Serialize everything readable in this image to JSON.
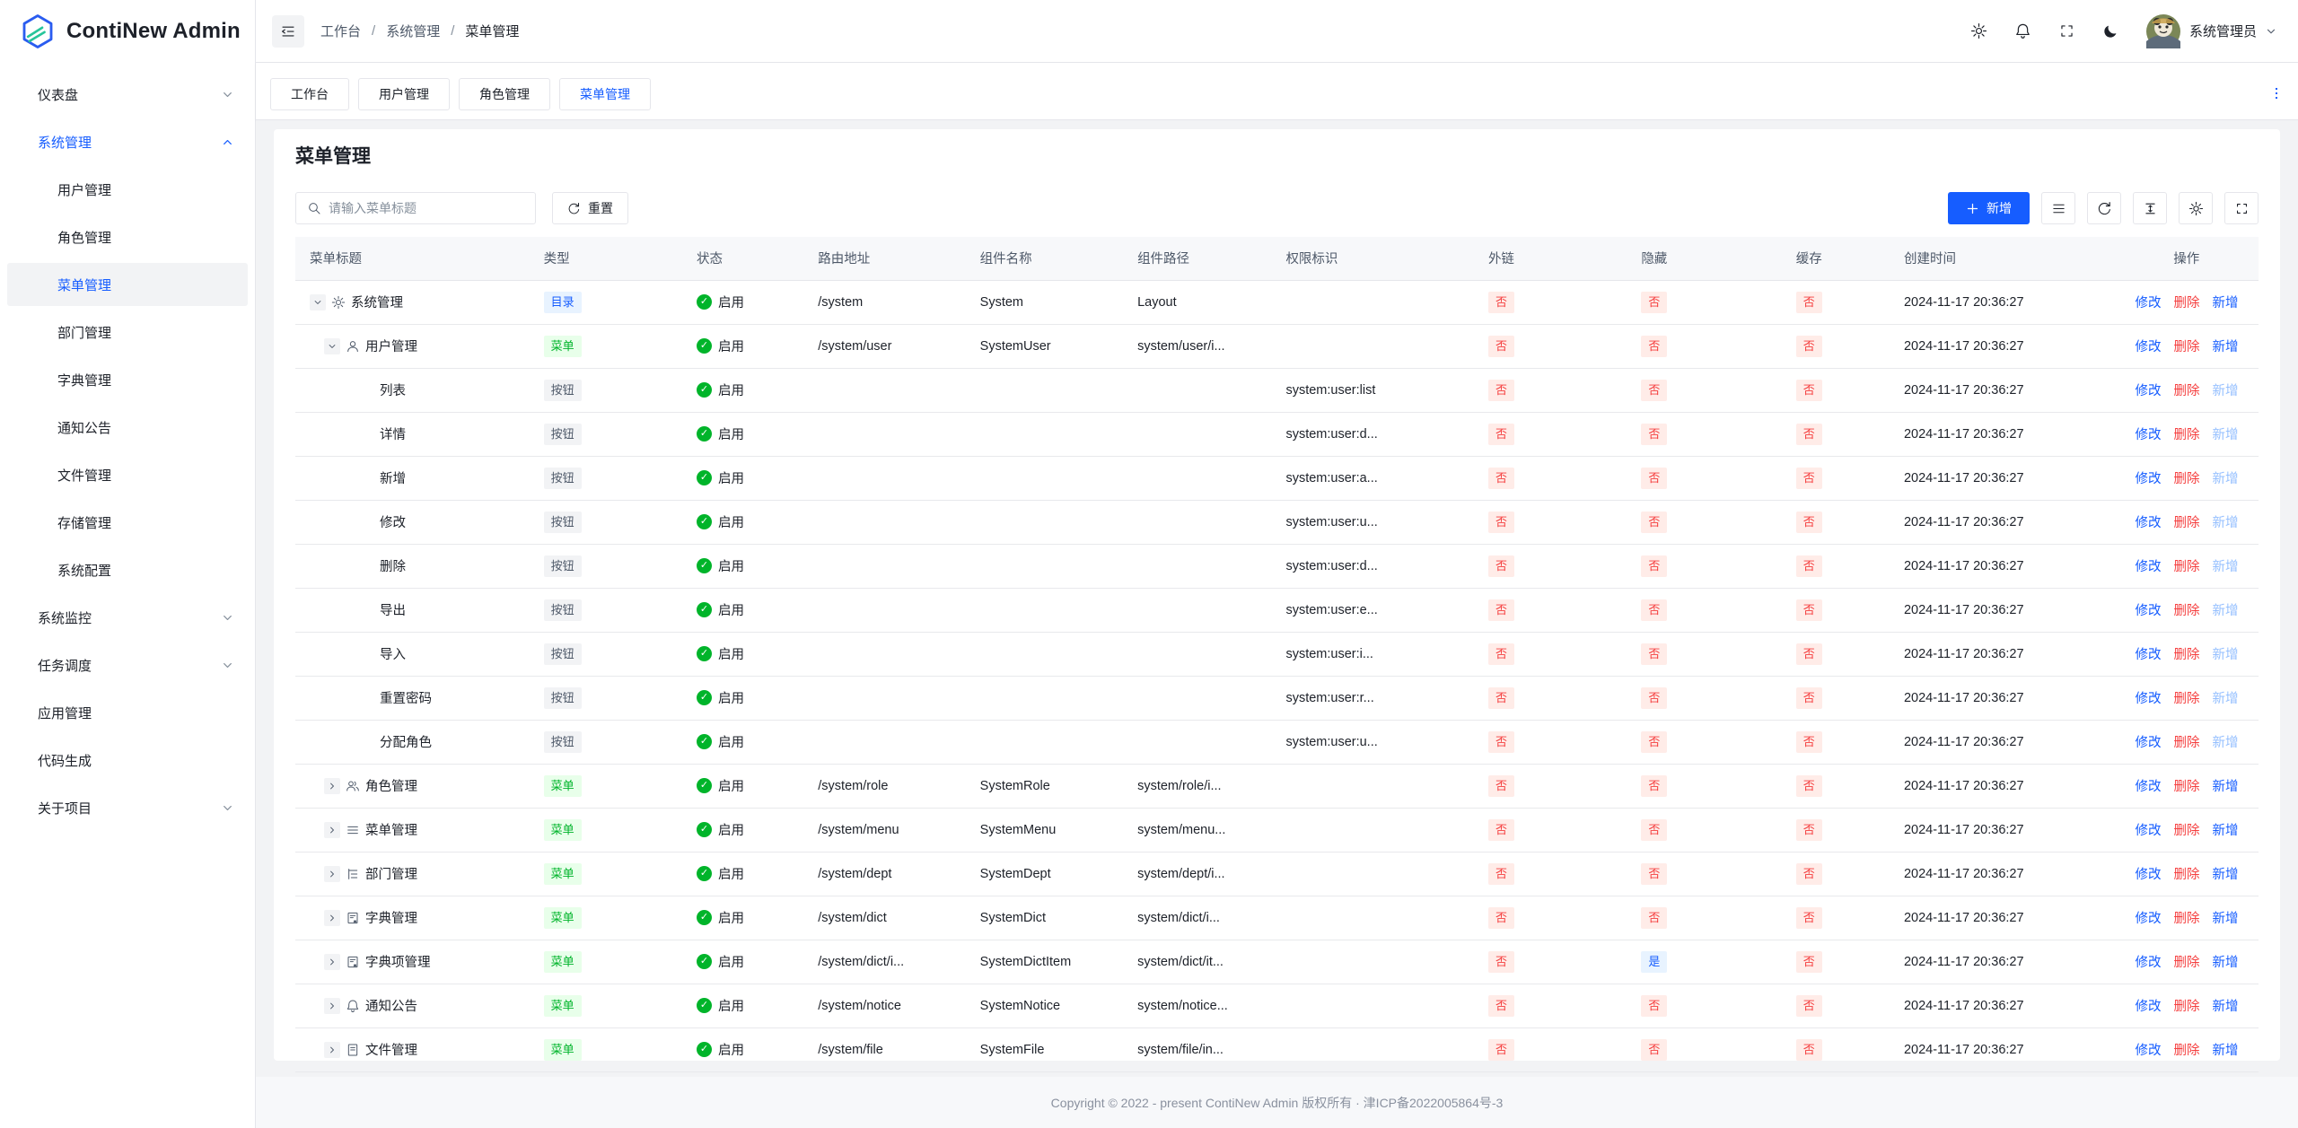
{
  "app": {
    "title": "ContiNew Admin"
  },
  "header": {
    "breadcrumb": [
      "工作台",
      "系统管理",
      "菜单管理"
    ],
    "icons": [
      "gear-icon",
      "bell-icon",
      "fullscreen-icon",
      "moon-icon"
    ],
    "user": {
      "name": "系统管理员"
    }
  },
  "tabs": {
    "items": [
      "工作台",
      "用户管理",
      "角色管理",
      "菜单管理"
    ],
    "active_index": 3
  },
  "sidebar": {
    "items": [
      {
        "icon": "dashboard",
        "label": "仪表盘",
        "chevron": "down"
      },
      {
        "icon": "gear",
        "label": "系统管理",
        "chevron": "up",
        "active_parent": true
      },
      {
        "icon": "user",
        "label": "用户管理",
        "sub": true
      },
      {
        "icon": "users",
        "label": "角色管理",
        "sub": true
      },
      {
        "icon": "menu",
        "label": "菜单管理",
        "sub": true,
        "active": true
      },
      {
        "icon": "tree",
        "label": "部门管理",
        "sub": true
      },
      {
        "icon": "book",
        "label": "字典管理",
        "sub": true
      },
      {
        "icon": "bell",
        "label": "通知公告",
        "sub": true
      },
      {
        "icon": "file",
        "label": "文件管理",
        "sub": true
      },
      {
        "icon": "storage",
        "label": "存储管理",
        "sub": true
      },
      {
        "icon": "sliders",
        "label": "系统配置",
        "sub": true
      },
      {
        "icon": "monitor",
        "label": "系统监控",
        "chevron": "down"
      },
      {
        "icon": "clock",
        "label": "任务调度",
        "chevron": "down"
      },
      {
        "icon": "cube",
        "label": "应用管理"
      },
      {
        "icon": "code",
        "label": "代码生成"
      },
      {
        "icon": "grid",
        "label": "关于项目",
        "chevron": "down"
      }
    ]
  },
  "page": {
    "title": "菜单管理",
    "search_placeholder": "请输入菜单标题",
    "reset_label": "重置",
    "add_label": "新增"
  },
  "table": {
    "columns": [
      "菜单标题",
      "类型",
      "状态",
      "路由地址",
      "组件名称",
      "组件路径",
      "权限标识",
      "外链",
      "隐藏",
      "缓存",
      "创建时间",
      "操作"
    ],
    "action_labels": {
      "edit": "修改",
      "delete": "删除",
      "add": "新增"
    },
    "rows": [
      {
        "level": 0,
        "expand": "down",
        "icon": "gear",
        "title": "系统管理",
        "type": {
          "label": "目录",
          "variant": "dir"
        },
        "status": "启用",
        "route": "/system",
        "component": "System",
        "path": "Layout",
        "perm": "",
        "external": "否",
        "hidden": "否",
        "cache": "否",
        "created": "2024-11-17 20:36:27",
        "add_disabled": false
      },
      {
        "level": 1,
        "expand": "down",
        "icon": "user",
        "title": "用户管理",
        "type": {
          "label": "菜单",
          "variant": "menu"
        },
        "status": "启用",
        "route": "/system/user",
        "component": "SystemUser",
        "path": "system/user/i...",
        "perm": "",
        "external": "否",
        "hidden": "否",
        "cache": "否",
        "created": "2024-11-17 20:36:27",
        "add_disabled": false
      },
      {
        "level": 2,
        "expand": null,
        "icon": null,
        "title": "列表",
        "type": {
          "label": "按钮",
          "variant": "btn"
        },
        "status": "启用",
        "route": "",
        "component": "",
        "path": "",
        "perm": "system:user:list",
        "external": "否",
        "hidden": "否",
        "cache": "否",
        "created": "2024-11-17 20:36:27",
        "add_disabled": true
      },
      {
        "level": 2,
        "expand": null,
        "icon": null,
        "title": "详情",
        "type": {
          "label": "按钮",
          "variant": "btn"
        },
        "status": "启用",
        "route": "",
        "component": "",
        "path": "",
        "perm": "system:user:d...",
        "external": "否",
        "hidden": "否",
        "cache": "否",
        "created": "2024-11-17 20:36:27",
        "add_disabled": true
      },
      {
        "level": 2,
        "expand": null,
        "icon": null,
        "title": "新增",
        "type": {
          "label": "按钮",
          "variant": "btn"
        },
        "status": "启用",
        "route": "",
        "component": "",
        "path": "",
        "perm": "system:user:a...",
        "external": "否",
        "hidden": "否",
        "cache": "否",
        "created": "2024-11-17 20:36:27",
        "add_disabled": true
      },
      {
        "level": 2,
        "expand": null,
        "icon": null,
        "title": "修改",
        "type": {
          "label": "按钮",
          "variant": "btn"
        },
        "status": "启用",
        "route": "",
        "component": "",
        "path": "",
        "perm": "system:user:u...",
        "external": "否",
        "hidden": "否",
        "cache": "否",
        "created": "2024-11-17 20:36:27",
        "add_disabled": true
      },
      {
        "level": 2,
        "expand": null,
        "icon": null,
        "title": "删除",
        "type": {
          "label": "按钮",
          "variant": "btn"
        },
        "status": "启用",
        "route": "",
        "component": "",
        "path": "",
        "perm": "system:user:d...",
        "external": "否",
        "hidden": "否",
        "cache": "否",
        "created": "2024-11-17 20:36:27",
        "add_disabled": true
      },
      {
        "level": 2,
        "expand": null,
        "icon": null,
        "title": "导出",
        "type": {
          "label": "按钮",
          "variant": "btn"
        },
        "status": "启用",
        "route": "",
        "component": "",
        "path": "",
        "perm": "system:user:e...",
        "external": "否",
        "hidden": "否",
        "cache": "否",
        "created": "2024-11-17 20:36:27",
        "add_disabled": true
      },
      {
        "level": 2,
        "expand": null,
        "icon": null,
        "title": "导入",
        "type": {
          "label": "按钮",
          "variant": "btn"
        },
        "status": "启用",
        "route": "",
        "component": "",
        "path": "",
        "perm": "system:user:i...",
        "external": "否",
        "hidden": "否",
        "cache": "否",
        "created": "2024-11-17 20:36:27",
        "add_disabled": true
      },
      {
        "level": 2,
        "expand": null,
        "icon": null,
        "title": "重置密码",
        "type": {
          "label": "按钮",
          "variant": "btn"
        },
        "status": "启用",
        "route": "",
        "component": "",
        "path": "",
        "perm": "system:user:r...",
        "external": "否",
        "hidden": "否",
        "cache": "否",
        "created": "2024-11-17 20:36:27",
        "add_disabled": true
      },
      {
        "level": 2,
        "expand": null,
        "icon": null,
        "title": "分配角色",
        "type": {
          "label": "按钮",
          "variant": "btn"
        },
        "status": "启用",
        "route": "",
        "component": "",
        "path": "",
        "perm": "system:user:u...",
        "external": "否",
        "hidden": "否",
        "cache": "否",
        "created": "2024-11-17 20:36:27",
        "add_disabled": true
      },
      {
        "level": 1,
        "expand": "right",
        "icon": "users",
        "title": "角色管理",
        "type": {
          "label": "菜单",
          "variant": "menu"
        },
        "status": "启用",
        "route": "/system/role",
        "component": "SystemRole",
        "path": "system/role/i...",
        "perm": "",
        "external": "否",
        "hidden": "否",
        "cache": "否",
        "created": "2024-11-17 20:36:27",
        "add_disabled": false
      },
      {
        "level": 1,
        "expand": "right",
        "icon": "menu",
        "title": "菜单管理",
        "type": {
          "label": "菜单",
          "variant": "menu"
        },
        "status": "启用",
        "route": "/system/menu",
        "component": "SystemMenu",
        "path": "system/menu...",
        "perm": "",
        "external": "否",
        "hidden": "否",
        "cache": "否",
        "created": "2024-11-17 20:36:27",
        "add_disabled": false
      },
      {
        "level": 1,
        "expand": "right",
        "icon": "tree",
        "title": "部门管理",
        "type": {
          "label": "菜单",
          "variant": "menu"
        },
        "status": "启用",
        "route": "/system/dept",
        "component": "SystemDept",
        "path": "system/dept/i...",
        "perm": "",
        "external": "否",
        "hidden": "否",
        "cache": "否",
        "created": "2024-11-17 20:36:27",
        "add_disabled": false
      },
      {
        "level": 1,
        "expand": "right",
        "icon": "book",
        "title": "字典管理",
        "type": {
          "label": "菜单",
          "variant": "menu"
        },
        "status": "启用",
        "route": "/system/dict",
        "component": "SystemDict",
        "path": "system/dict/i...",
        "perm": "",
        "external": "否",
        "hidden": "否",
        "cache": "否",
        "created": "2024-11-17 20:36:27",
        "add_disabled": false
      },
      {
        "level": 1,
        "expand": "right",
        "icon": "book",
        "title": "字典项管理",
        "type": {
          "label": "菜单",
          "variant": "menu"
        },
        "status": "启用",
        "route": "/system/dict/i...",
        "component": "SystemDictItem",
        "path": "system/dict/it...",
        "perm": "",
        "external": "否",
        "hidden": "是",
        "cache": "否",
        "created": "2024-11-17 20:36:27",
        "add_disabled": false
      },
      {
        "level": 1,
        "expand": "right",
        "icon": "bell",
        "title": "通知公告",
        "type": {
          "label": "菜单",
          "variant": "menu"
        },
        "status": "启用",
        "route": "/system/notice",
        "component": "SystemNotice",
        "path": "system/notice...",
        "perm": "",
        "external": "否",
        "hidden": "否",
        "cache": "否",
        "created": "2024-11-17 20:36:27",
        "add_disabled": false
      },
      {
        "level": 1,
        "expand": "right",
        "icon": "file",
        "title": "文件管理",
        "type": {
          "label": "菜单",
          "variant": "menu"
        },
        "status": "启用",
        "route": "/system/file",
        "component": "SystemFile",
        "path": "system/file/in...",
        "perm": "",
        "external": "否",
        "hidden": "否",
        "cache": "否",
        "created": "2024-11-17 20:36:27",
        "add_disabled": false
      }
    ]
  },
  "footer": {
    "copyright": "Copyright © 2022 - present ContiNew Admin 版权所有 · 津ICP备2022005864号-3"
  },
  "colors": {
    "primary": "#165dff",
    "success": "#00b42a",
    "danger": "#f53f3f",
    "page_bg": "#f2f3f5",
    "border": "#e5e6eb"
  }
}
